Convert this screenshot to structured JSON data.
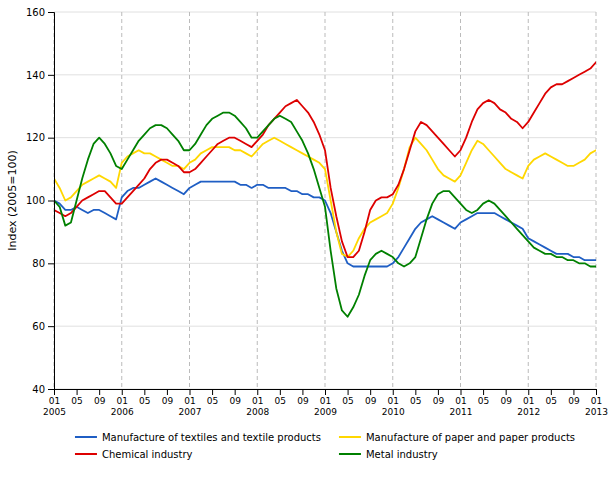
{
  "chart_data": {
    "type": "line",
    "y_label": "Index (2005=100)",
    "categories": [
      "01\n2005",
      null,
      null,
      null,
      "05",
      null,
      null,
      null,
      "09",
      null,
      null,
      null,
      "01\n2006",
      null,
      null,
      null,
      "05",
      null,
      null,
      null,
      "09",
      null,
      null,
      null,
      "01\n2007",
      null,
      null,
      null,
      "05",
      null,
      null,
      null,
      "09",
      null,
      null,
      null,
      "01\n2008",
      null,
      null,
      null,
      "05",
      null,
      null,
      null,
      "09",
      null,
      null,
      null,
      "01\n2009",
      null,
      null,
      null,
      "05",
      null,
      null,
      null,
      "09",
      null,
      null,
      null,
      "01\n2010",
      null,
      null,
      null,
      "05",
      null,
      null,
      null,
      "09",
      null,
      null,
      null,
      "01\n2011",
      null,
      null,
      null,
      "05",
      null,
      null,
      null,
      "09",
      null,
      null,
      null,
      "01\n2012",
      null,
      null,
      null,
      "05",
      null,
      null,
      null,
      "09",
      null,
      null,
      null,
      "01\n2013"
    ],
    "series": [
      {
        "name": "Manufacture of textiles and textile products",
        "color": "#1f5ec4",
        "values": [
          100,
          99,
          97,
          97,
          98,
          97,
          96,
          97,
          97,
          96,
          95,
          94,
          101,
          103,
          104,
          104,
          105,
          106,
          107,
          106,
          105,
          104,
          103,
          102,
          104,
          105,
          106,
          106,
          106,
          106,
          106,
          106,
          106,
          105,
          105,
          104,
          105,
          105,
          104,
          104,
          104,
          104,
          103,
          103,
          102,
          102,
          101,
          101,
          100,
          96,
          90,
          84,
          80,
          79,
          79,
          79,
          79,
          79,
          79,
          79,
          80,
          82,
          85,
          88,
          91,
          93,
          94,
          95,
          94,
          93,
          92,
          91,
          93,
          94,
          95,
          96,
          96,
          96,
          96,
          95,
          94,
          93,
          92,
          91,
          88,
          87,
          86,
          85,
          84,
          83,
          83,
          83,
          82,
          82,
          81,
          81,
          81
        ]
      },
      {
        "name": "Manufacture of paper and paper products",
        "color": "#ffd700",
        "values": [
          107,
          104,
          100,
          101,
          103,
          105,
          106,
          107,
          108,
          107,
          106,
          104,
          112,
          114,
          115,
          116,
          115,
          115,
          114,
          113,
          112,
          111,
          111,
          110,
          112,
          113,
          115,
          116,
          117,
          117,
          117,
          117,
          116,
          116,
          115,
          114,
          116,
          118,
          119,
          120,
          119,
          118,
          117,
          116,
          115,
          114,
          113,
          112,
          110,
          100,
          90,
          83,
          82,
          84,
          88,
          91,
          93,
          94,
          95,
          96,
          99,
          104,
          110,
          117,
          120,
          118,
          116,
          113,
          110,
          108,
          107,
          106,
          108,
          112,
          116,
          119,
          118,
          116,
          114,
          112,
          110,
          109,
          108,
          107,
          111,
          113,
          114,
          115,
          114,
          113,
          112,
          111,
          111,
          112,
          113,
          115,
          116
        ]
      },
      {
        "name": "Chemical industry",
        "color": "#dd0000",
        "values": [
          97,
          96,
          95,
          96,
          98,
          100,
          101,
          102,
          103,
          103,
          101,
          99,
          99,
          101,
          103,
          105,
          107,
          110,
          112,
          113,
          113,
          112,
          111,
          109,
          109,
          110,
          112,
          114,
          116,
          118,
          119,
          120,
          120,
          119,
          118,
          117,
          119,
          121,
          124,
          126,
          128,
          130,
          131,
          132,
          130,
          128,
          125,
          121,
          116,
          104,
          95,
          87,
          82,
          82,
          84,
          90,
          97,
          100,
          101,
          101,
          102,
          105,
          110,
          116,
          122,
          125,
          124,
          122,
          120,
          118,
          116,
          114,
          116,
          120,
          125,
          129,
          131,
          132,
          131,
          129,
          128,
          126,
          125,
          123,
          125,
          128,
          131,
          134,
          136,
          137,
          137,
          138,
          139,
          140,
          141,
          142,
          144
        ]
      },
      {
        "name": "Metal industry",
        "color": "#008000",
        "values": [
          100,
          98,
          92,
          93,
          100,
          107,
          113,
          118,
          120,
          118,
          115,
          111,
          110,
          113,
          116,
          119,
          121,
          123,
          124,
          124,
          123,
          121,
          119,
          116,
          116,
          118,
          121,
          124,
          126,
          127,
          128,
          128,
          127,
          125,
          123,
          120,
          120,
          122,
          124,
          126,
          127,
          126,
          125,
          122,
          119,
          115,
          110,
          104,
          98,
          84,
          72,
          65,
          63,
          66,
          70,
          76,
          81,
          83,
          84,
          83,
          82,
          80,
          79,
          80,
          82,
          88,
          94,
          99,
          102,
          103,
          103,
          101,
          99,
          97,
          96,
          97,
          99,
          100,
          99,
          97,
          95,
          93,
          91,
          89,
          87,
          85,
          84,
          83,
          83,
          82,
          82,
          81,
          81,
          80,
          80,
          79,
          79
        ]
      }
    ],
    "ylim": [
      40,
      160
    ],
    "yticks": [
      40,
      60,
      80,
      100,
      120,
      140,
      160
    ],
    "grid": true,
    "legend": "bottom"
  }
}
